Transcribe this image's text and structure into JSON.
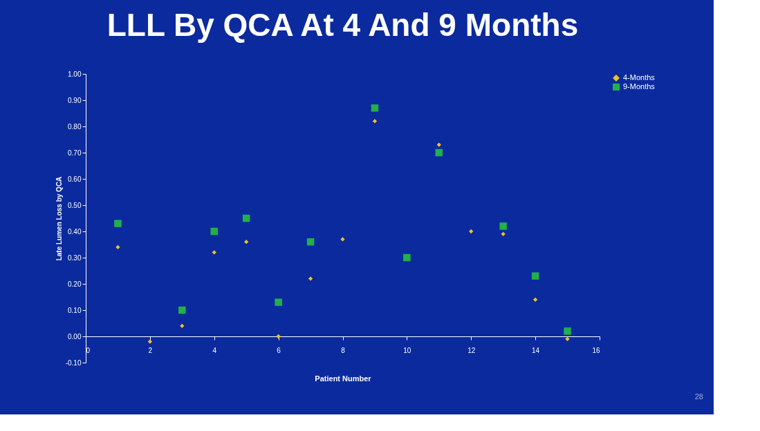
{
  "chart_data": {
    "type": "scatter",
    "title": "LLL By QCA At 4 And 9 Months",
    "xlabel": "Patient Number",
    "ylabel": "Late Lumen Loss by QCA",
    "x": [
      1,
      2,
      3,
      4,
      5,
      6,
      7,
      8,
      9,
      10,
      11,
      12,
      13,
      14,
      15
    ],
    "series": [
      {
        "name": "4-Months",
        "color": "#f0c020",
        "marker": "diamond",
        "values": [
          0.34,
          -0.02,
          0.04,
          0.32,
          0.36,
          0.0,
          0.22,
          0.37,
          0.82,
          null,
          0.73,
          0.4,
          0.39,
          0.14,
          -0.01
        ]
      },
      {
        "name": "9-Months",
        "color": "#22b04a",
        "marker": "square",
        "values": [
          0.43,
          null,
          0.1,
          0.4,
          0.45,
          0.13,
          0.36,
          null,
          0.87,
          0.3,
          0.7,
          null,
          0.42,
          0.23,
          0.02
        ]
      }
    ],
    "xlim": [
      0,
      16
    ],
    "xticks": [
      0,
      2,
      4,
      6,
      8,
      10,
      12,
      14,
      16
    ],
    "ylim": [
      -0.1,
      1.0
    ],
    "yticks": [
      {
        "value": -0.1,
        "label": "-0.10"
      },
      {
        "value": 0,
        "label": "0.00"
      },
      {
        "value": 0.1,
        "label": "0.10"
      },
      {
        "value": 0.2,
        "label": "0.20"
      },
      {
        "value": 0.3,
        "label": "0.30"
      },
      {
        "value": 0.4,
        "label": "0.40"
      },
      {
        "value": 0.5,
        "label": "0.50"
      },
      {
        "value": 0.6,
        "label": "0.60"
      },
      {
        "value": 0.7,
        "label": "0.70"
      },
      {
        "value": 0.8,
        "label": "0.80"
      },
      {
        "value": 0.9,
        "label": "0.90"
      },
      {
        "value": 1.0,
        "label": "1.00"
      }
    ],
    "grid": false,
    "legend": "right",
    "annotations": [
      "28"
    ]
  }
}
